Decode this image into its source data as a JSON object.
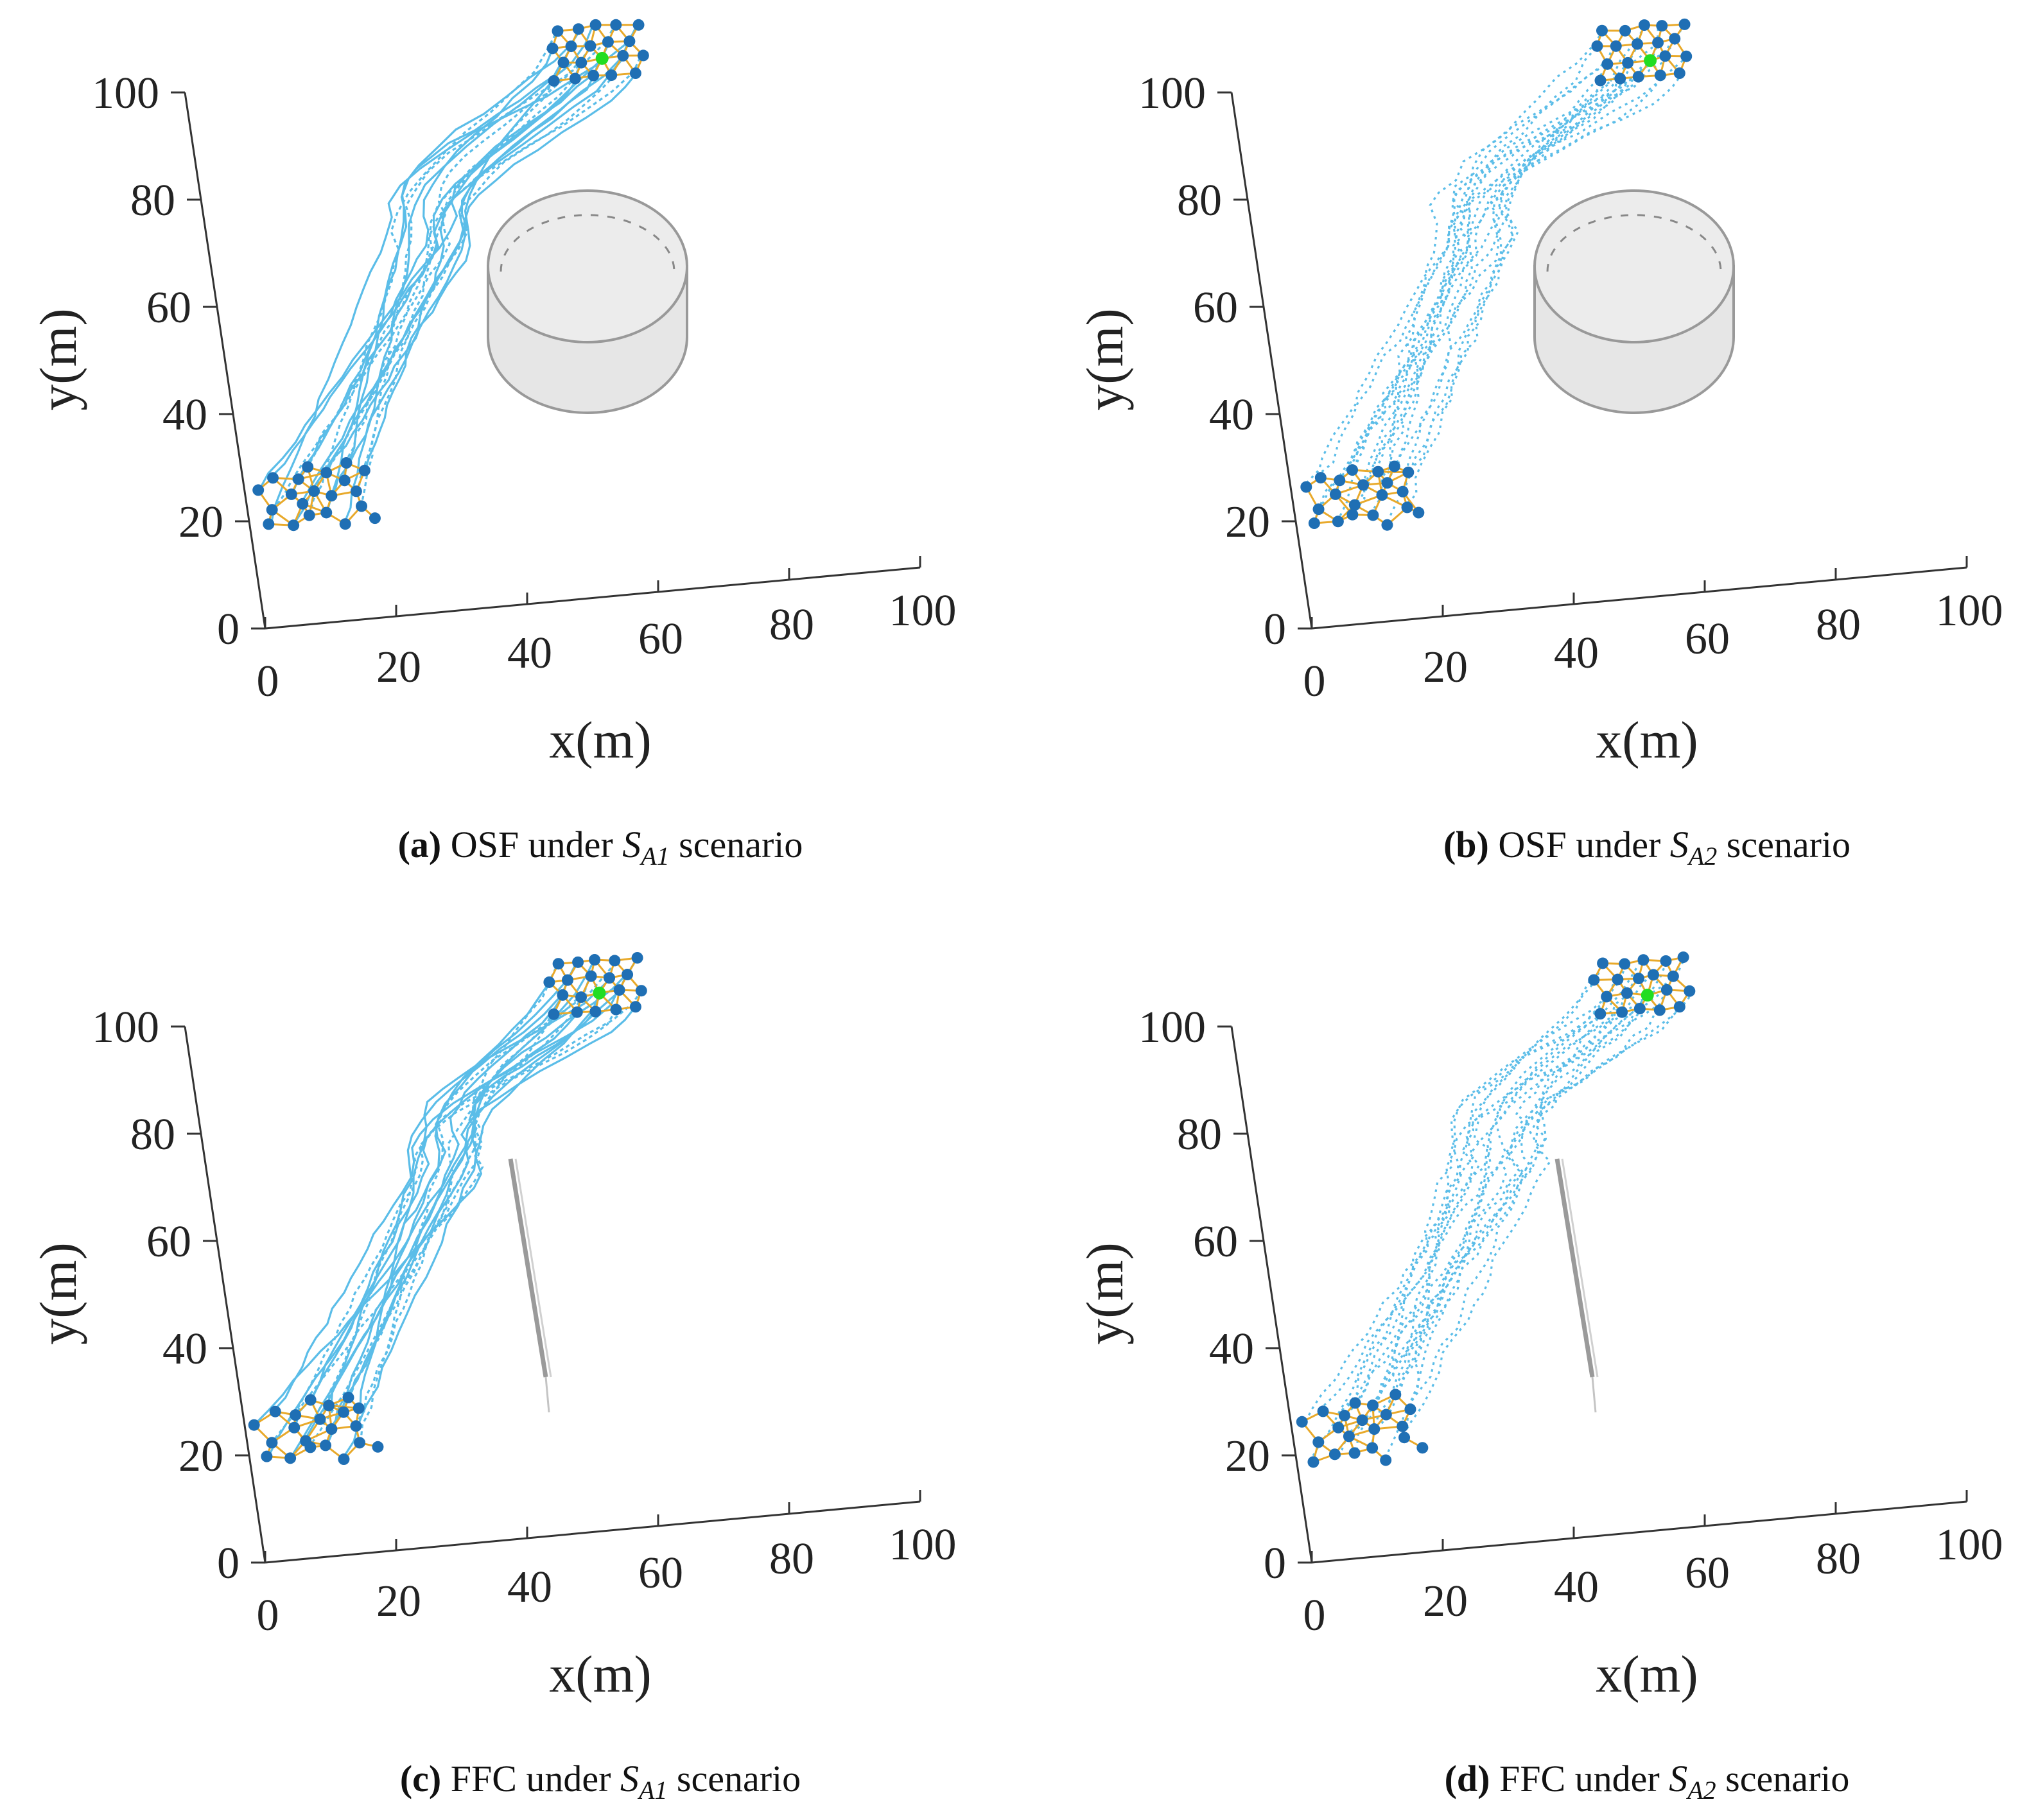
{
  "chart_data": [
    {
      "type": "scatter",
      "panel": "a",
      "caption_letter": "(a)",
      "caption_prefix": "OSF under",
      "caption_S": "S",
      "caption_sub": "A1",
      "caption_suffix": "scenario",
      "xlabel": "x(m)",
      "ylabel": "y(m)",
      "xlim": [
        0,
        100
      ],
      "ylim": [
        0,
        100
      ],
      "x_ticks": [
        "0",
        "20",
        "40",
        "60",
        "80",
        "100"
      ],
      "y_ticks": [
        "0",
        "20",
        "40",
        "60",
        "80",
        "100"
      ],
      "obstacle": "cylinder",
      "trajectory_style": "solid",
      "leader_color": "#22dd22",
      "edge_color": "#e8a92a",
      "node_color": "#1f6fb4",
      "trajectory_color": "#5bbde8"
    },
    {
      "type": "scatter",
      "panel": "b",
      "caption_letter": "(b)",
      "caption_prefix": "OSF under",
      "caption_S": "S",
      "caption_sub": "A2",
      "caption_suffix": "scenario",
      "xlabel": "x(m)",
      "ylabel": "y(m)",
      "xlim": [
        0,
        100
      ],
      "ylim": [
        0,
        100
      ],
      "x_ticks": [
        "0",
        "20",
        "40",
        "60",
        "80",
        "100"
      ],
      "y_ticks": [
        "0",
        "20",
        "40",
        "60",
        "80",
        "100"
      ],
      "obstacle": "cylinder",
      "trajectory_style": "dotted",
      "leader_color": "#22dd22",
      "edge_color": "#e8a92a",
      "node_color": "#1f6fb4",
      "trajectory_color": "#5bbde8"
    },
    {
      "type": "scatter",
      "panel": "c",
      "caption_letter": "(c)",
      "caption_prefix": "FFC under",
      "caption_S": "S",
      "caption_sub": "A1",
      "caption_suffix": "scenario",
      "xlabel": "x(m)",
      "ylabel": "y(m)",
      "xlim": [
        0,
        100
      ],
      "ylim": [
        0,
        100
      ],
      "x_ticks": [
        "0",
        "20",
        "40",
        "60",
        "80",
        "100"
      ],
      "y_ticks": [
        "0",
        "20",
        "40",
        "60",
        "80",
        "100"
      ],
      "obstacle": "wall",
      "trajectory_style": "solid",
      "leader_color": "#22dd22",
      "edge_color": "#e8a92a",
      "node_color": "#1f6fb4",
      "trajectory_color": "#5bbde8"
    },
    {
      "type": "scatter",
      "panel": "d",
      "caption_letter": "(d)",
      "caption_prefix": "FFC under",
      "caption_S": "S",
      "caption_sub": "A2",
      "caption_suffix": "scenario",
      "xlabel": "x(m)",
      "ylabel": "y(m)",
      "xlim": [
        0,
        100
      ],
      "ylim": [
        0,
        100
      ],
      "x_ticks": [
        "0",
        "20",
        "40",
        "60",
        "80",
        "100"
      ],
      "y_ticks": [
        "0",
        "20",
        "40",
        "60",
        "80",
        "100"
      ],
      "obstacle": "wall",
      "trajectory_style": "dotted",
      "leader_color": "#22dd22",
      "edge_color": "#e8a92a",
      "node_color": "#1f6fb4",
      "trajectory_color": "#5bbde8"
    }
  ]
}
